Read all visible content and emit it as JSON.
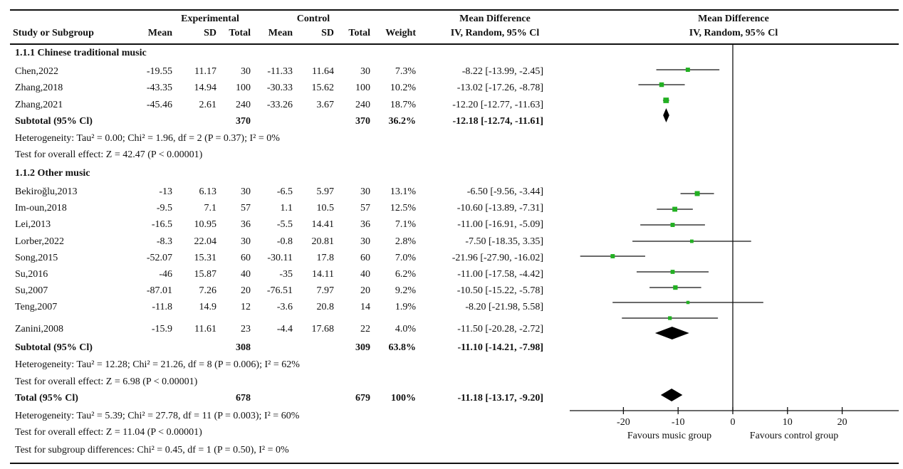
{
  "header": {
    "experimental": "Experimental",
    "control": "Control",
    "md_title": "Mean Difference",
    "md_sub": "IV, Random, 95% Cl",
    "plot_title": "Mean Difference",
    "plot_sub": "IV, Random, 95% Cl",
    "cols": [
      "Study or Subgroup",
      "Mean",
      "SD",
      "Total",
      "Mean",
      "SD",
      "Total",
      "Weight"
    ]
  },
  "rows": [
    {
      "type": "group",
      "label": "1.1.1 Chinese traditional music"
    },
    {
      "type": "study",
      "label": "Chen,2022",
      "cells": [
        "-19.55",
        "11.17",
        "30",
        "-11.33",
        "11.64",
        "30",
        "7.3%",
        "-8.22 [-13.99, -2.45]"
      ]
    },
    {
      "type": "study",
      "label": "Zhang,2018",
      "cells": [
        "-43.35",
        "14.94",
        "100",
        "-30.33",
        "15.62",
        "100",
        "10.2%",
        "-13.02 [-17.26, -8.78]"
      ]
    },
    {
      "type": "study",
      "label": "Zhang,2021",
      "cells": [
        "-45.46",
        "2.61",
        "240",
        "-33.26",
        "3.67",
        "240",
        "18.7%",
        "-12.20 [-12.77, -11.63]"
      ]
    },
    {
      "type": "subtotal",
      "label": "Subtotal (95% Cl)",
      "cells": [
        "",
        "",
        "370",
        "",
        "",
        "370",
        "36.2%",
        "-12.18 [-12.74, -11.61]"
      ]
    },
    {
      "type": "text",
      "label": "Heterogeneity: Tau² = 0.00; Chi² = 1.96, df = 2 (P = 0.37); I² = 0%"
    },
    {
      "type": "text",
      "label": "Test for overall effect: Z = 42.47 (P < 0.00001)"
    },
    {
      "type": "group",
      "label": "1.1.2 Other music"
    },
    {
      "type": "study",
      "label": "Bekiroğlu,2013",
      "cells": [
        "-13",
        "6.13",
        "30",
        "-6.5",
        "5.97",
        "30",
        "13.1%",
        "-6.50 [-9.56, -3.44]"
      ]
    },
    {
      "type": "study",
      "label": "Im-oun,2018",
      "cells": [
        "-9.5",
        "7.1",
        "57",
        "1.1",
        "10.5",
        "57",
        "12.5%",
        "-10.60 [-13.89, -7.31]"
      ]
    },
    {
      "type": "study",
      "label": "Lei,2013",
      "cells": [
        "-16.5",
        "10.95",
        "36",
        "-5.5",
        "14.41",
        "36",
        "7.1%",
        "-11.00 [-16.91, -5.09]"
      ]
    },
    {
      "type": "study",
      "label": "Lorber,2022",
      "cells": [
        "-8.3",
        "22.04",
        "30",
        "-0.8",
        "20.81",
        "30",
        "2.8%",
        "-7.50 [-18.35, 3.35]"
      ]
    },
    {
      "type": "study",
      "label": "Song,2015",
      "cells": [
        "-52.07",
        "15.31",
        "60",
        "-30.11",
        "17.8",
        "60",
        "7.0%",
        "-21.96 [-27.90, -16.02]"
      ]
    },
    {
      "type": "study",
      "label": "Su,2016",
      "cells": [
        "-46",
        "15.87",
        "40",
        "-35",
        "14.11",
        "40",
        "6.2%",
        "-11.00 [-17.58, -4.42]"
      ]
    },
    {
      "type": "study",
      "label": "Su,2007",
      "cells": [
        "-87.01",
        "7.26",
        "20",
        "-76.51",
        "7.97",
        "20",
        "9.2%",
        "-10.50 [-15.22, -5.78]"
      ]
    },
    {
      "type": "study",
      "label": "Teng,2007",
      "cells": [
        "-11.8",
        "14.9",
        "12",
        "-3.6",
        "20.8",
        "14",
        "1.9%",
        "-8.20 [-21.98, 5.58]"
      ]
    },
    {
      "type": "study",
      "label": "Zanini,2008",
      "cells": [
        "-15.9",
        "11.61",
        "23",
        "-4.4",
        "17.68",
        "22",
        "4.0%",
        "-11.50 [-20.28, -2.72]"
      ]
    },
    {
      "type": "subtotal",
      "label": "Subtotal (95% Cl)",
      "cells": [
        "",
        "",
        "308",
        "",
        "",
        "309",
        "63.8%",
        "-11.10 [-14.21, -7.98]"
      ]
    },
    {
      "type": "text",
      "label": "Heterogeneity: Tau² = 12.28; Chi² = 21.26, df = 8 (P = 0.006); I² = 62%"
    },
    {
      "type": "text",
      "label": "Test for overall effect: Z = 6.98 (P < 0.00001)"
    },
    {
      "type": "subtotal",
      "label": "Total (95% Cl)",
      "cells": [
        "",
        "",
        "678",
        "",
        "",
        "679",
        "100%",
        "-11.18 [-13.17, -9.20]"
      ]
    },
    {
      "type": "text",
      "label": "Heterogeneity: Tau² = 5.39; Chi² = 27.78, df = 11 (P = 0.003); I² = 60%"
    },
    {
      "type": "text",
      "label": "Test for overall effect: Z = 11.04 (P < 0.00001)"
    },
    {
      "type": "text",
      "label": "Test for subgroup differences: Chi² = 0.45, df = 1 (P = 0.50), I² = 0%"
    }
  ],
  "chart_data": {
    "type": "forest",
    "xlim": [
      -28,
      30
    ],
    "xticks": [
      -20,
      -10,
      0,
      10,
      20
    ],
    "xtick_labels": [
      "-20",
      "-10",
      "0",
      "10",
      "20"
    ],
    "left_label": "Favours music group",
    "right_label": "Favours  control group",
    "marker_color": "#22b022",
    "studies": [
      {
        "label": "Chen,2022",
        "md": -8.22,
        "lo": -13.99,
        "hi": -2.45,
        "weight": 7.3
      },
      {
        "label": "Zhang,2018",
        "md": -13.02,
        "lo": -17.26,
        "hi": -8.78,
        "weight": 10.2
      },
      {
        "label": "Zhang,2021",
        "md": -12.2,
        "lo": -12.77,
        "hi": -11.63,
        "weight": 18.7
      },
      {
        "label": "Bekiroğlu,2013",
        "md": -6.5,
        "lo": -9.56,
        "hi": -3.44,
        "weight": 13.1
      },
      {
        "label": "Im-oun,2018",
        "md": -10.6,
        "lo": -13.89,
        "hi": -7.31,
        "weight": 12.5
      },
      {
        "label": "Lei,2013",
        "md": -11.0,
        "lo": -16.91,
        "hi": -5.09,
        "weight": 7.1
      },
      {
        "label": "Lorber,2022",
        "md": -7.5,
        "lo": -18.35,
        "hi": 3.35,
        "weight": 2.8
      },
      {
        "label": "Song,2015",
        "md": -21.96,
        "lo": -27.9,
        "hi": -16.02,
        "weight": 7.0
      },
      {
        "label": "Su,2016",
        "md": -11.0,
        "lo": -17.58,
        "hi": -4.42,
        "weight": 6.2
      },
      {
        "label": "Su,2007",
        "md": -10.5,
        "lo": -15.22,
        "hi": -5.78,
        "weight": 9.2
      },
      {
        "label": "Teng,2007",
        "md": -8.2,
        "lo": -21.98,
        "hi": 5.58,
        "weight": 1.9
      },
      {
        "label": "Zanini,2008",
        "md": -11.5,
        "lo": -20.28,
        "hi": -2.72,
        "weight": 4.0
      }
    ],
    "pooled": [
      {
        "label": "Subtotal 1.1.1",
        "md": -12.18,
        "lo": -12.74,
        "hi": -11.61
      },
      {
        "label": "Subtotal 1.1.2",
        "md": -11.1,
        "lo": -14.21,
        "hi": -7.98
      },
      {
        "label": "Total",
        "md": -11.18,
        "lo": -13.17,
        "hi": -9.2
      }
    ]
  }
}
